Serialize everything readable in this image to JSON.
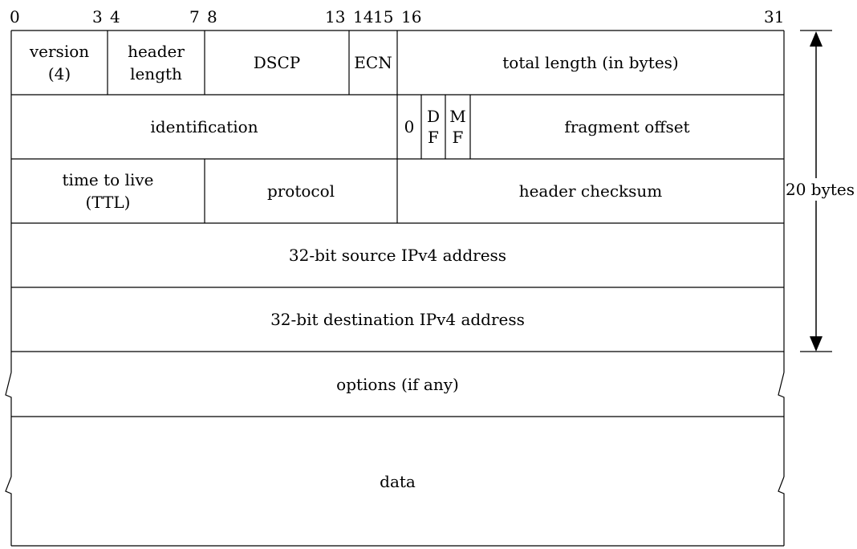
{
  "bits": {
    "b0": "0",
    "b3": "3",
    "b4": "4",
    "b7": "7",
    "b8": "8",
    "b13": "13",
    "b14": "14",
    "b15": "15",
    "b16": "16",
    "b31": "31"
  },
  "fields": {
    "version_line1": "version",
    "version_line2": "(4)",
    "header_length_line1": "header",
    "header_length_line2": "length",
    "dscp": "DSCP",
    "ecn": "ECN",
    "total_length": "total length (in bytes)",
    "identification": "identification",
    "zero_flag": "0",
    "df_line1": "D",
    "df_line2": "F",
    "mf_line1": "M",
    "mf_line2": "F",
    "fragment_offset": "fragment offset",
    "ttl_line1": "time to live",
    "ttl_line2": "(TTL)",
    "protocol": "protocol",
    "header_checksum": "header checksum",
    "source_address": "32-bit source IPv4 address",
    "destination_address": "32-bit destination IPv4 address",
    "options": "options (if any)",
    "data": "data"
  },
  "side_label": "20 bytes"
}
